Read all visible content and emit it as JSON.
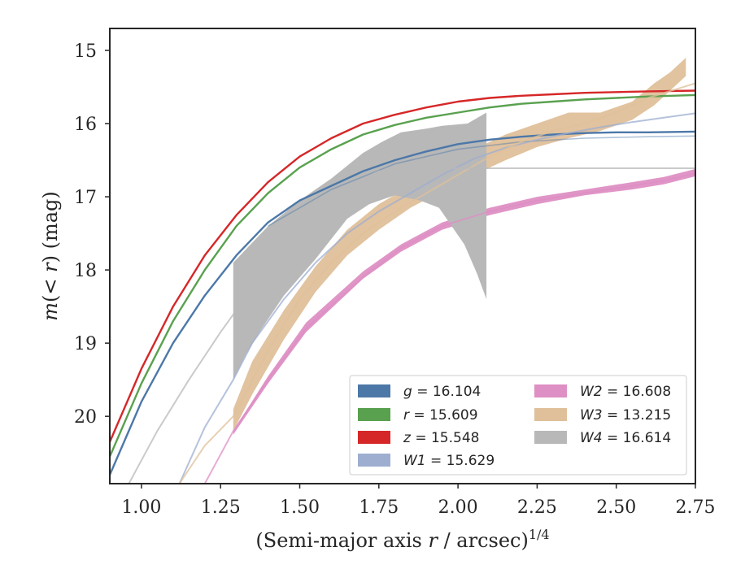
{
  "chart_data": {
    "type": "line",
    "xlabel": "(Semi-major axis r / arcsec)^{1/4}",
    "ylabel": "m(< r) (mag)",
    "xlim": [
      0.9,
      2.75
    ],
    "ylim": [
      20.92,
      14.7
    ],
    "y_inverted": true,
    "grid": false,
    "legend_position": "lower-right",
    "x_ticks": [
      "1.00",
      "1.25",
      "1.50",
      "1.75",
      "2.00",
      "2.25",
      "2.50",
      "2.75"
    ],
    "x_tick_values": [
      1.0,
      1.25,
      1.5,
      1.75,
      2.0,
      2.25,
      2.5,
      2.75
    ],
    "y_ticks": [
      "15",
      "16",
      "17",
      "18",
      "19",
      "20"
    ],
    "y_tick_values": [
      15,
      16,
      17,
      18,
      19,
      20
    ],
    "series": [
      {
        "name": "g = 16.104",
        "legend": {
          "sym": "g",
          "val": "= 16.104"
        },
        "color": "#4c78a8",
        "x": [
          0.9,
          1.0,
          1.1,
          1.2,
          1.3,
          1.4,
          1.5,
          1.6,
          1.7,
          1.8,
          1.9,
          2.0,
          2.1,
          2.2,
          2.3,
          2.4,
          2.5,
          2.6,
          2.75
        ],
        "y": [
          20.8,
          19.8,
          19.0,
          18.35,
          17.8,
          17.35,
          17.05,
          16.85,
          16.65,
          16.5,
          16.38,
          16.28,
          16.22,
          16.18,
          16.15,
          16.13,
          16.12,
          16.12,
          16.11
        ],
        "alt": {
          "x": [
            1.4,
            1.6,
            1.8,
            2.0,
            2.2,
            2.4,
            2.6,
            2.75
          ],
          "y": [
            17.4,
            16.9,
            16.55,
            16.35,
            16.25,
            16.2,
            16.18,
            16.17
          ]
        }
      },
      {
        "name": "r = 15.609",
        "legend": {
          "sym": "r",
          "val": "= 15.609"
        },
        "color": "#59a14f",
        "x": [
          0.9,
          1.0,
          1.1,
          1.2,
          1.3,
          1.4,
          1.5,
          1.6,
          1.7,
          1.8,
          1.9,
          2.0,
          2.1,
          2.2,
          2.3,
          2.4,
          2.5,
          2.6,
          2.75
        ],
        "y": [
          20.55,
          19.55,
          18.7,
          18.0,
          17.4,
          16.95,
          16.6,
          16.35,
          16.15,
          16.02,
          15.92,
          15.85,
          15.78,
          15.73,
          15.7,
          15.67,
          15.65,
          15.63,
          15.61
        ]
      },
      {
        "name": "z = 15.548",
        "legend": {
          "sym": "z",
          "val": "= 15.548"
        },
        "color": "#d62728",
        "x": [
          0.9,
          1.0,
          1.1,
          1.2,
          1.3,
          1.4,
          1.5,
          1.6,
          1.7,
          1.8,
          1.9,
          2.0,
          2.1,
          2.2,
          2.3,
          2.4,
          2.5,
          2.6,
          2.75
        ],
        "y": [
          20.35,
          19.35,
          18.5,
          17.8,
          17.25,
          16.8,
          16.45,
          16.2,
          16.0,
          15.88,
          15.78,
          15.7,
          15.65,
          15.62,
          15.6,
          15.58,
          15.57,
          15.56,
          15.55
        ]
      },
      {
        "name": "W1 = 15.629",
        "legend": {
          "sym": "W1",
          "val": "= 15.629"
        },
        "color": "#9eaed0",
        "x": [
          1.12,
          1.2,
          1.29,
          1.35,
          1.45,
          1.55,
          1.65,
          1.75,
          1.85,
          1.95,
          2.05,
          2.15,
          2.25,
          2.35,
          2.45,
          2.55,
          2.65,
          2.75
        ],
        "y": [
          20.92,
          20.15,
          19.5,
          19.0,
          18.4,
          17.9,
          17.5,
          17.2,
          16.95,
          16.7,
          16.48,
          16.33,
          16.22,
          16.13,
          16.05,
          15.98,
          15.92,
          15.86
        ]
      },
      {
        "name": "W2 = 16.608",
        "legend": {
          "sym": "W2",
          "val": "= 16.608"
        },
        "color": "#de8fc4",
        "x": [
          1.2,
          1.29,
          1.4,
          1.52,
          1.7,
          1.82,
          1.95,
          2.1,
          2.25,
          2.4,
          2.55,
          2.65,
          2.75
        ],
        "y": [
          20.92,
          20.2,
          19.5,
          18.8,
          18.1,
          17.7,
          17.4,
          17.2,
          17.05,
          16.95,
          16.85,
          16.78,
          16.68
        ],
        "band": {
          "x": [
            1.29,
            1.4,
            1.52,
            1.7,
            1.82,
            1.95,
            2.1,
            2.25,
            2.4,
            2.55,
            2.65,
            2.75
          ],
          "y_low": [
            20.2,
            19.45,
            18.72,
            18.02,
            17.65,
            17.35,
            17.15,
            17.0,
            16.9,
            16.8,
            16.73,
            16.62
          ],
          "y_high": [
            20.25,
            19.55,
            18.85,
            18.12,
            17.75,
            17.45,
            17.25,
            17.1,
            16.98,
            16.9,
            16.83,
            16.72
          ]
        }
      },
      {
        "name": "W3 = 13.215",
        "legend": {
          "sym": "W3",
          "val": "= 13.215"
        },
        "color": "#dfc09a",
        "x": [
          1.12,
          1.2,
          1.29,
          1.4,
          1.5,
          1.6,
          1.7,
          1.8,
          1.9,
          2.0,
          2.1,
          2.2,
          2.3,
          2.4,
          2.5,
          2.6,
          2.75
        ],
        "y": [
          20.92,
          20.4,
          20.0,
          19.1,
          18.4,
          17.9,
          17.5,
          17.2,
          16.95,
          16.7,
          16.45,
          16.25,
          16.1,
          16.0,
          15.85,
          15.65,
          15.45
        ],
        "band": {
          "x": [
            1.29,
            1.35,
            1.45,
            1.55,
            1.65,
            1.75,
            1.85,
            1.95,
            2.05,
            2.15,
            2.25,
            2.35,
            2.45,
            2.55,
            2.62,
            2.67,
            2.72
          ],
          "y_low": [
            19.9,
            19.25,
            18.55,
            17.95,
            17.45,
            17.1,
            16.85,
            16.6,
            16.35,
            16.15,
            16.0,
            15.85,
            15.85,
            15.7,
            15.45,
            15.3,
            15.1
          ],
          "y_high": [
            20.2,
            19.7,
            18.95,
            18.3,
            17.8,
            17.45,
            17.15,
            16.92,
            16.7,
            16.5,
            16.32,
            16.2,
            16.1,
            15.95,
            15.75,
            15.55,
            15.35
          ]
        }
      },
      {
        "name": "W4 = 16.614",
        "legend": {
          "sym": "W4",
          "val": "= 16.614"
        },
        "color": "#b8b8b8",
        "x": [
          0.96,
          1.05,
          1.15,
          1.25,
          1.35,
          1.45,
          1.55,
          1.65,
          1.75,
          1.85,
          1.95,
          2.1,
          2.3,
          2.5,
          2.75
        ],
        "y": [
          20.92,
          20.2,
          19.5,
          18.85,
          18.25,
          17.7,
          17.2,
          16.85,
          16.65,
          16.61,
          16.61,
          16.61,
          16.61,
          16.61,
          16.61
        ],
        "band": {
          "x": [
            1.29,
            1.4,
            1.5,
            1.6,
            1.7,
            1.76,
            1.82,
            1.9,
            1.95,
            2.03,
            2.09,
            2.09,
            2.06,
            2.02,
            1.94,
            1.88,
            1.8,
            1.72,
            1.65,
            1.55,
            1.45,
            1.38,
            1.33,
            1.29
          ],
          "y": [
            17.9,
            17.4,
            17.05,
            16.75,
            16.4,
            16.25,
            16.12,
            16.07,
            16.03,
            16.0,
            15.85,
            18.4,
            18.05,
            17.65,
            17.15,
            17.05,
            16.98,
            17.1,
            17.3,
            17.85,
            18.35,
            18.8,
            19.15,
            19.5
          ]
        }
      }
    ]
  }
}
